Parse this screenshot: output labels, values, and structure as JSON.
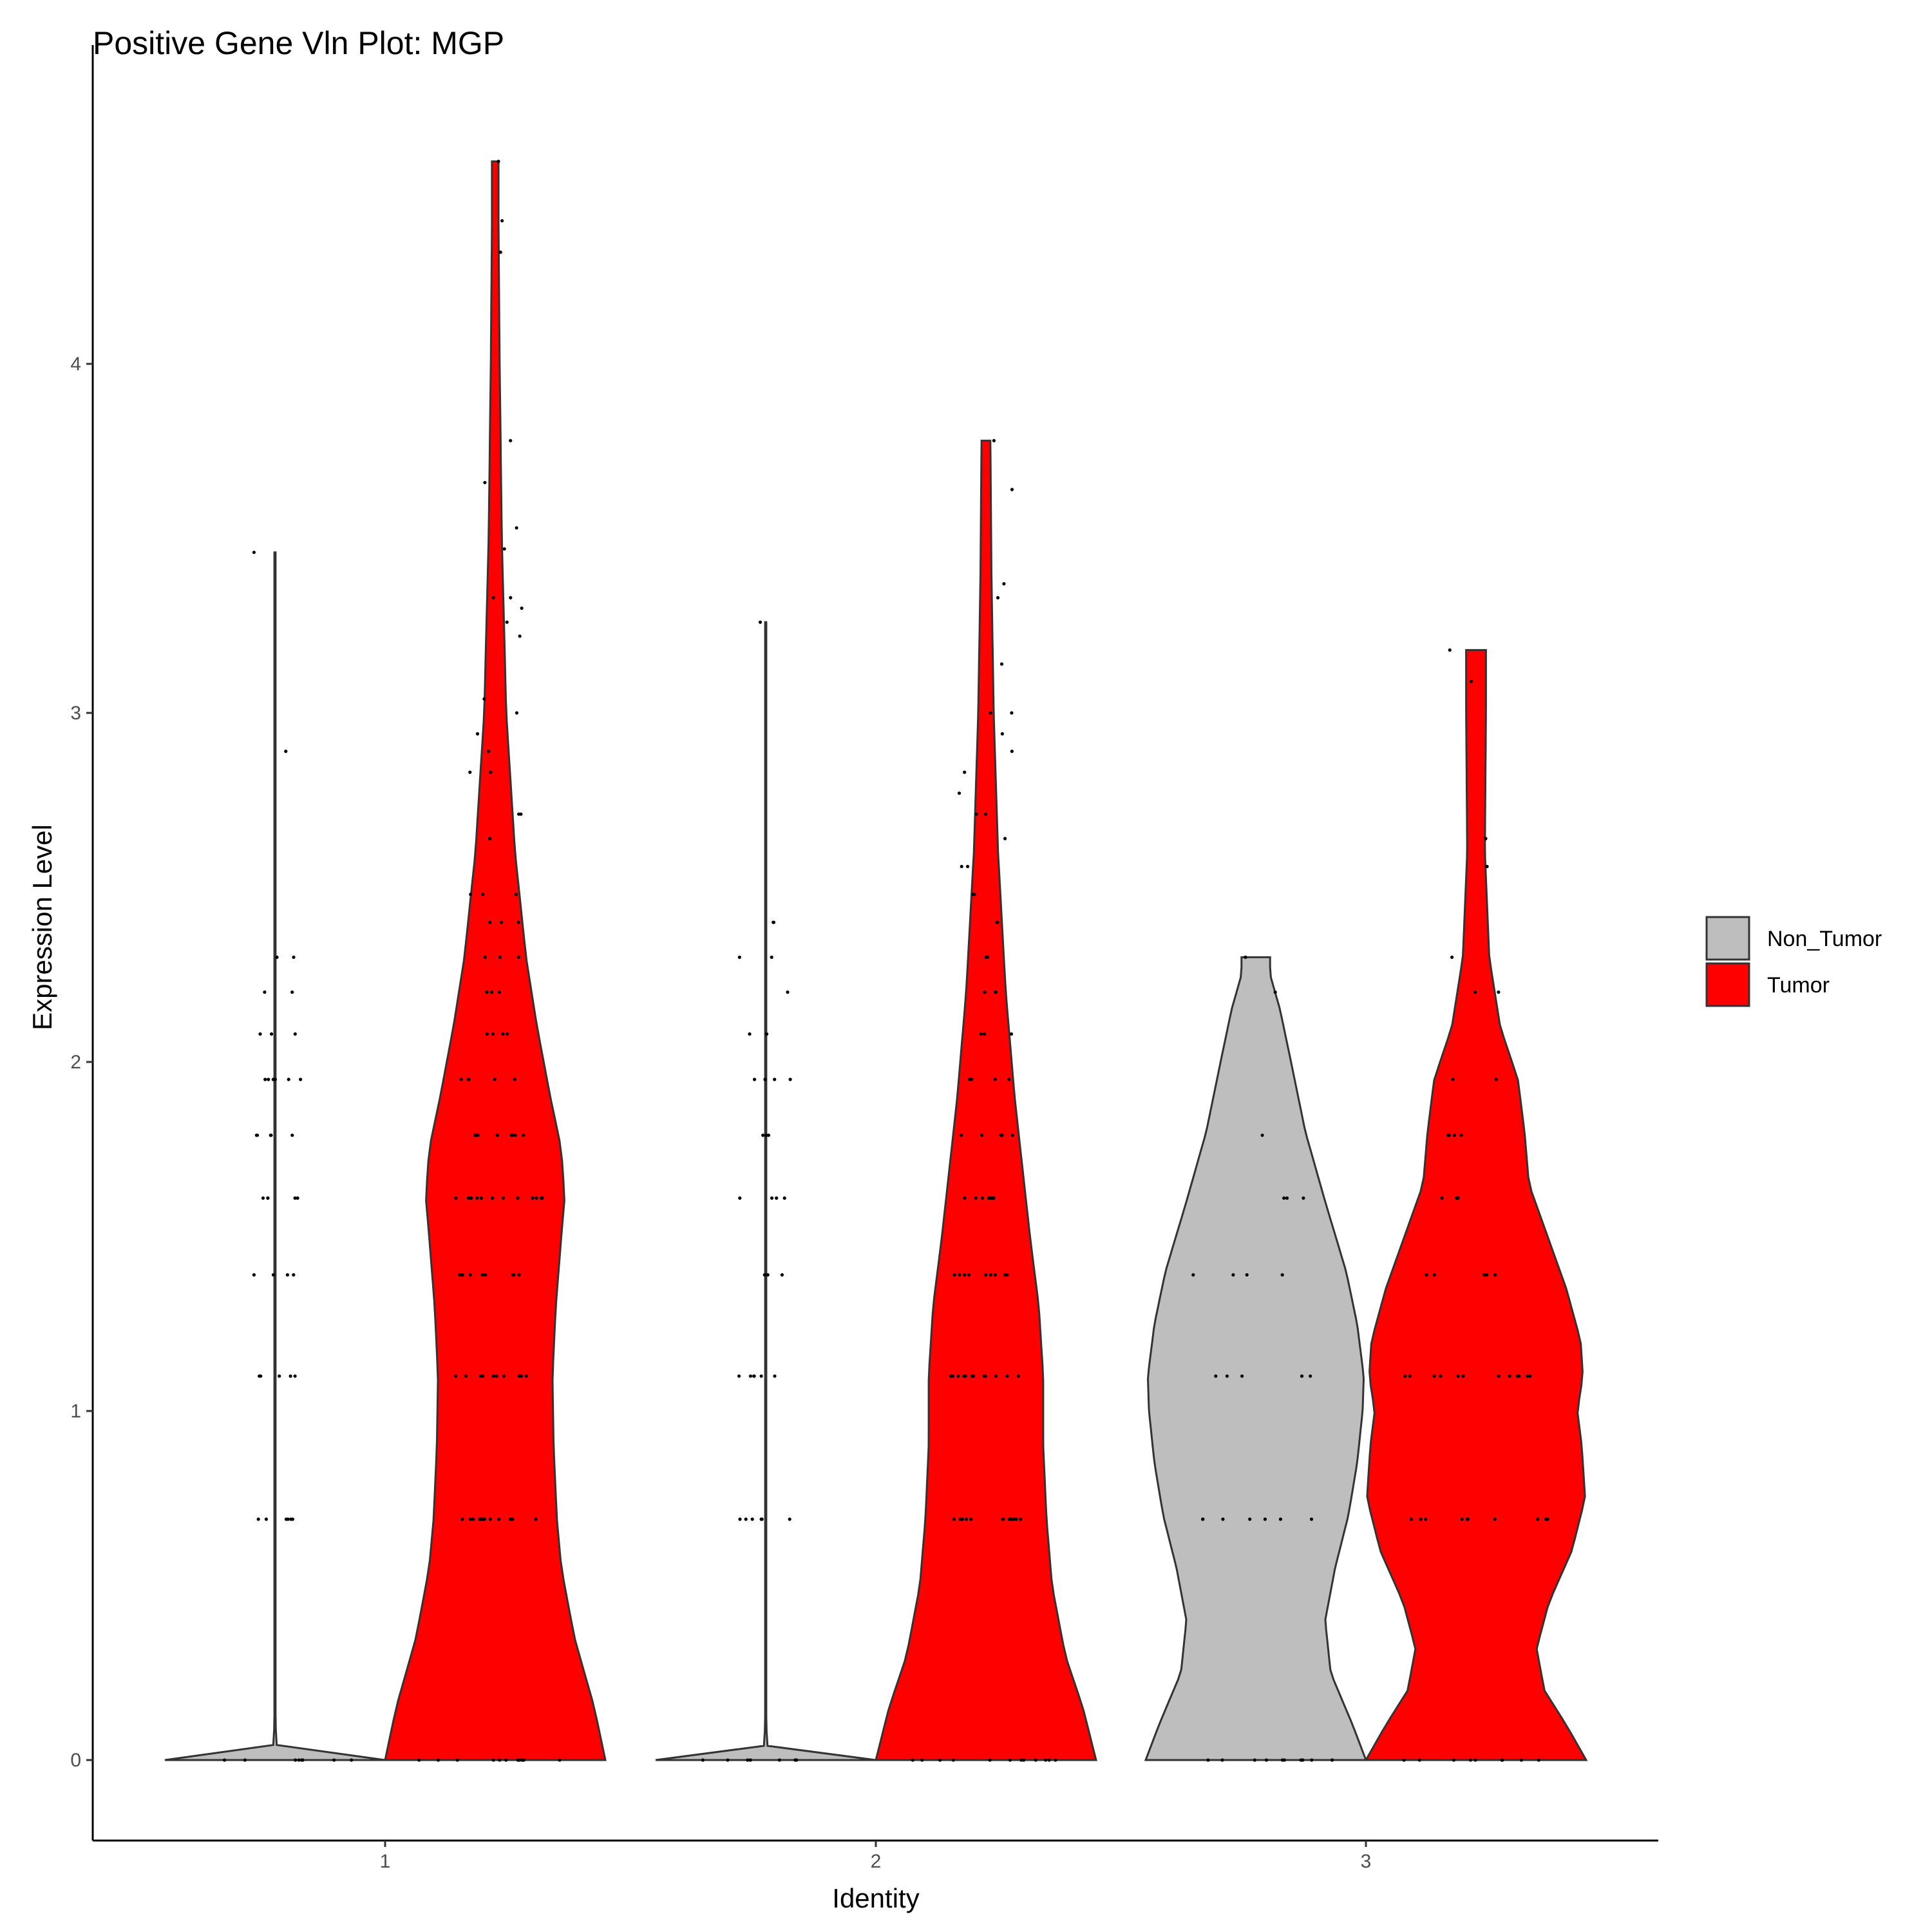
{
  "chart_data": {
    "type": "violin",
    "title": "Positive Gene Vln Plot: MGP",
    "xlabel": "Identity",
    "ylabel": "Expression Level",
    "categories": [
      "1",
      "2",
      "3"
    ],
    "ylim": [
      -0.23,
      4.83
    ],
    "yticks": [
      0,
      1,
      2,
      3,
      4
    ],
    "grid": false,
    "legend": {
      "position": "right",
      "entries": [
        {
          "name": "Non_Tumor",
          "color": "#BEBEBE"
        },
        {
          "name": "Tumor",
          "color": "#FF0000"
        }
      ]
    },
    "series": [
      {
        "name": "Non_Tumor",
        "color": "#BEBEBE",
        "violins": [
          {
            "category": "1",
            "max": 3.46,
            "profile": [
              [
                0,
                1
              ],
              [
                0.02,
                0.02
              ],
              [
                0.1,
                0.005
              ],
              [
                3.46,
                0.005
              ]
            ],
            "points": [
              0,
              0,
              0,
              0,
              0,
              0,
              0,
              0,
              0.69,
              0.69,
              0.69,
              0.69,
              0.69,
              0.69,
              1.1,
              1.1,
              1.1,
              1.1,
              1.1,
              1.39,
              1.39,
              1.39,
              1.39,
              1.61,
              1.61,
              1.61,
              1.61,
              1.61,
              1.79,
              1.79,
              1.79,
              1.79,
              1.79,
              1.95,
              1.95,
              1.95,
              1.95,
              1.95,
              1.95,
              2.08,
              2.08,
              2.08,
              2.2,
              2.2,
              2.3,
              2.3,
              2.89,
              3.46
            ]
          },
          {
            "category": "2",
            "max": 3.26,
            "profile": [
              [
                0,
                1
              ],
              [
                0.02,
                0.02
              ],
              [
                0.1,
                0.005
              ],
              [
                3.26,
                0.005
              ]
            ],
            "points": [
              0,
              0,
              0,
              0,
              0,
              0,
              0,
              0,
              0.69,
              0.69,
              0.69,
              0.69,
              0.69,
              0.69,
              1.1,
              1.1,
              1.1,
              1.1,
              1.1,
              1.1,
              1.39,
              1.39,
              1.39,
              1.61,
              1.61,
              1.61,
              1.61,
              1.79,
              1.79,
              1.79,
              1.95,
              1.95,
              1.95,
              1.95,
              2.08,
              2.08,
              2.2,
              2.3,
              2.3,
              2.4,
              2.4,
              3.26
            ]
          },
          {
            "category": "3",
            "max": 2.3,
            "profile": [
              [
                0,
                1
              ],
              [
                0.1,
                0.88
              ],
              [
                0.25,
                0.68
              ],
              [
                0.4,
                0.63
              ],
              [
                0.55,
                0.72
              ],
              [
                0.7,
                0.84
              ],
              [
                0.85,
                0.92
              ],
              [
                1.0,
                0.97
              ],
              [
                1.1,
                0.98
              ],
              [
                1.25,
                0.92
              ],
              [
                1.4,
                0.82
              ],
              [
                1.6,
                0.63
              ],
              [
                1.8,
                0.45
              ],
              [
                2.0,
                0.32
              ],
              [
                2.15,
                0.22
              ],
              [
                2.25,
                0.13
              ],
              [
                2.3,
                0.13
              ]
            ],
            "points": [
              0,
              0,
              0,
              0,
              0,
              0,
              0,
              0,
              0,
              0,
              0.69,
              0.69,
              0.69,
              0.69,
              0.69,
              0.69,
              0.69,
              1.1,
              1.1,
              1.1,
              1.1,
              1.1,
              1.1,
              1.39,
              1.39,
              1.39,
              1.39,
              1.61,
              1.61,
              1.61,
              1.79,
              2.2,
              2.3
            ]
          }
        ]
      },
      {
        "name": "Tumor",
        "color": "#FF0000",
        "violins": [
          {
            "category": "1",
            "max": 4.58,
            "profile": [
              [
                0,
                1
              ],
              [
                0.15,
                0.9
              ],
              [
                0.35,
                0.72
              ],
              [
                0.55,
                0.6
              ],
              [
                0.69,
                0.56
              ],
              [
                0.9,
                0.53
              ],
              [
                1.1,
                0.52
              ],
              [
                1.3,
                0.55
              ],
              [
                1.5,
                0.6
              ],
              [
                1.61,
                0.63
              ],
              [
                1.75,
                0.6
              ],
              [
                1.9,
                0.5
              ],
              [
                2.1,
                0.38
              ],
              [
                2.3,
                0.28
              ],
              [
                2.6,
                0.18
              ],
              [
                3.0,
                0.1
              ],
              [
                3.5,
                0.06
              ],
              [
                4.0,
                0.04
              ],
              [
                4.4,
                0.03
              ],
              [
                4.58,
                0.03
              ]
            ],
            "points": [
              0,
              0,
              0,
              0,
              0,
              0,
              0,
              0,
              0,
              0,
              0,
              0,
              0.69,
              0.69,
              0.69,
              0.69,
              0.69,
              0.69,
              0.69,
              0.69,
              0.69,
              0.69,
              0.69,
              0.69,
              0.69,
              1.1,
              1.1,
              1.1,
              1.1,
              1.1,
              1.1,
              1.1,
              1.1,
              1.1,
              1.1,
              1.1,
              1.39,
              1.39,
              1.39,
              1.39,
              1.39,
              1.39,
              1.39,
              1.39,
              1.39,
              1.39,
              1.61,
              1.61,
              1.61,
              1.61,
              1.61,
              1.61,
              1.61,
              1.61,
              1.61,
              1.61,
              1.61,
              1.61,
              1.61,
              1.79,
              1.79,
              1.79,
              1.79,
              1.79,
              1.79,
              1.79,
              1.79,
              1.79,
              1.95,
              1.95,
              1.95,
              1.95,
              1.95,
              2.08,
              2.08,
              2.08,
              2.08,
              2.2,
              2.2,
              2.2,
              2.2,
              2.3,
              2.3,
              2.3,
              2.4,
              2.4,
              2.4,
              2.48,
              2.48,
              2.48,
              2.64,
              2.64,
              2.71,
              2.71,
              2.83,
              2.83,
              2.89,
              2.94,
              3.0,
              3.04,
              3.22,
              3.26,
              3.3,
              3.33,
              3.33,
              3.47,
              3.53,
              3.66,
              3.78,
              4.32,
              4.41,
              4.58
            ]
          },
          {
            "category": "2",
            "max": 3.78,
            "profile": [
              [
                0,
                1
              ],
              [
                0.15,
                0.88
              ],
              [
                0.3,
                0.72
              ],
              [
                0.5,
                0.6
              ],
              [
                0.69,
                0.55
              ],
              [
                0.9,
                0.52
              ],
              [
                1.1,
                0.52
              ],
              [
                1.3,
                0.48
              ],
              [
                1.5,
                0.4
              ],
              [
                1.7,
                0.33
              ],
              [
                1.9,
                0.26
              ],
              [
                2.2,
                0.18
              ],
              [
                2.6,
                0.11
              ],
              [
                3.0,
                0.07
              ],
              [
                3.4,
                0.05
              ],
              [
                3.78,
                0.04
              ]
            ],
            "points": [
              0,
              0,
              0,
              0,
              0,
              0,
              0,
              0,
              0,
              0,
              0,
              0,
              0.69,
              0.69,
              0.69,
              0.69,
              0.69,
              0.69,
              0.69,
              0.69,
              0.69,
              0.69,
              0.69,
              0.69,
              0.69,
              1.1,
              1.1,
              1.1,
              1.1,
              1.1,
              1.1,
              1.1,
              1.1,
              1.1,
              1.1,
              1.1,
              1.1,
              1.39,
              1.39,
              1.39,
              1.39,
              1.39,
              1.39,
              1.39,
              1.39,
              1.39,
              1.61,
              1.61,
              1.61,
              1.61,
              1.61,
              1.61,
              1.61,
              1.79,
              1.79,
              1.79,
              1.79,
              1.79,
              1.79,
              1.95,
              1.95,
              1.95,
              1.95,
              2.08,
              2.08,
              2.08,
              2.2,
              2.2,
              2.2,
              2.3,
              2.3,
              2.4,
              2.4,
              2.48,
              2.48,
              2.56,
              2.56,
              2.64,
              2.71,
              2.71,
              2.77,
              2.83,
              2.89,
              2.94,
              3.0,
              3.0,
              3.14,
              3.33,
              3.37,
              3.64,
              3.78
            ]
          },
          {
            "category": "3",
            "max": 3.18,
            "profile": [
              [
                0,
                1
              ],
              [
                0.1,
                0.82
              ],
              [
                0.2,
                0.62
              ],
              [
                0.32,
                0.55
              ],
              [
                0.45,
                0.66
              ],
              [
                0.6,
                0.87
              ],
              [
                0.75,
                0.99
              ],
              [
                0.9,
                0.96
              ],
              [
                1.0,
                0.92
              ],
              [
                1.1,
                0.97
              ],
              [
                1.2,
                0.95
              ],
              [
                1.35,
                0.82
              ],
              [
                1.5,
                0.65
              ],
              [
                1.65,
                0.48
              ],
              [
                1.8,
                0.44
              ],
              [
                1.95,
                0.38
              ],
              [
                2.1,
                0.22
              ],
              [
                2.3,
                0.12
              ],
              [
                2.6,
                0.08
              ],
              [
                3.0,
                0.09
              ],
              [
                3.18,
                0.09
              ]
            ],
            "points": [
              0,
              0,
              0,
              0,
              0,
              0,
              0,
              0,
              0,
              0,
              0.69,
              0.69,
              0.69,
              0.69,
              0.69,
              0.69,
              0.69,
              0.69,
              0.69,
              0.69,
              1.1,
              1.1,
              1.1,
              1.1,
              1.1,
              1.1,
              1.1,
              1.1,
              1.1,
              1.1,
              1.1,
              1.1,
              1.39,
              1.39,
              1.39,
              1.39,
              1.39,
              1.61,
              1.61,
              1.61,
              1.79,
              1.79,
              1.79,
              1.79,
              1.95,
              1.95,
              2.2,
              2.2,
              2.3,
              2.56,
              2.64,
              3.09,
              3.18
            ]
          }
        ]
      }
    ]
  }
}
